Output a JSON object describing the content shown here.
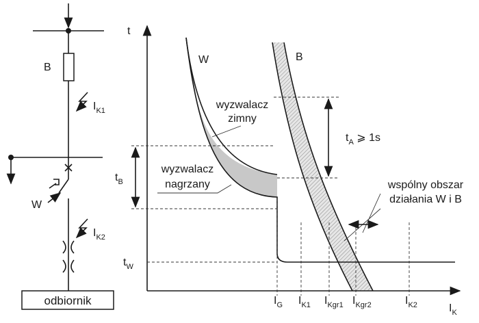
{
  "schematic": {
    "fuse_label": "B",
    "fault1": {
      "main": "I",
      "sub": "K1"
    },
    "breaker_label": "W",
    "fault2": {
      "main": "I",
      "sub": "K2"
    },
    "load": "odbiornik"
  },
  "plot": {
    "y_axis": "t",
    "x_axis": {
      "main": "I",
      "sub": "K"
    },
    "curve_w": "W",
    "curve_b": "B",
    "cold_trip": [
      "wyzwalacz",
      "zimny"
    ],
    "hot_trip": [
      "wyzwalacz",
      "nagrzany"
    ],
    "t_a": {
      "main": "t",
      "sub": "A",
      "rest": " ⩾ 1s"
    },
    "t_b": {
      "main": "t",
      "sub": "B"
    },
    "t_w": {
      "main": "t",
      "sub": "W"
    },
    "common_zone": [
      "wspólny obszar",
      "działania W i B"
    ],
    "x_marks": [
      {
        "main": "I",
        "sub": "G"
      },
      {
        "main": "I",
        "sub": "K1"
      },
      {
        "main": "I",
        "sub": "Kgr1"
      },
      {
        "main": "I",
        "sub": "Kgr2"
      },
      {
        "main": "I",
        "sub": "K2"
      }
    ]
  }
}
